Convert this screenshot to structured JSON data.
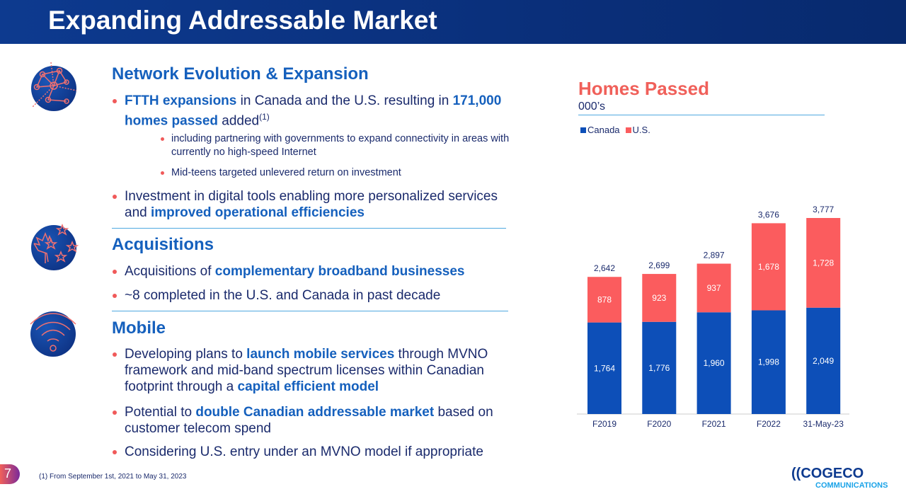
{
  "title": "Expanding Addressable Market",
  "sections": {
    "network": {
      "title": "Network Evolution & Expansion",
      "b1": {
        "h1": "FTTH expansions",
        "t1": " in Canada and the U.S. resulting in ",
        "h2": "171,000 homes passed",
        "t2": " added",
        "sup": "(1)"
      },
      "s1": "including partnering with governments to expand connectivity in areas with currently no high-speed Internet",
      "s2": "Mid-teens targeted unlevered return on investment",
      "b2": {
        "t1": "Investment in digital tools enabling more personalized services and ",
        "h1": "improved operational efficiencies"
      }
    },
    "acq": {
      "title": "Acquisitions",
      "b1": {
        "t1": "Acquisitions of ",
        "h1": "complementary broadband businesses"
      },
      "b2": "~8 completed in the U.S. and Canada in past decade"
    },
    "mobile": {
      "title": "Mobile",
      "b1": {
        "t1": "Developing plans to ",
        "h1": "launch mobile services",
        "t2": " through MVNO framework and mid-band spectrum licenses within Canadian footprint through a ",
        "h2": "capital efficient model"
      },
      "b2": {
        "t1": "Potential to ",
        "h1": "double Canadian addressable market",
        "t2": " based on customer telecom spend"
      },
      "b3": "Considering U.S. entry under an MVNO model if appropriate"
    }
  },
  "icons": [
    "network-icon",
    "maple-leaf-stars-icon",
    "wifi-icon"
  ],
  "footer": {
    "page": "7",
    "note": "(1) From September 1st, 2021 to May 31, 2023",
    "logo_main": "COGECO",
    "logo_sub": "COMMUNICATIONS"
  },
  "chart_data": {
    "type": "bar",
    "stacked": true,
    "title": "Homes Passed",
    "subtitle": "000’s",
    "categories": [
      "F2019",
      "F2020",
      "F2021",
      "F2022",
      "31-May-23"
    ],
    "series": [
      {
        "name": "Canada",
        "values": [
          1764,
          1776,
          1960,
          1998,
          2049
        ],
        "color": "#0d4fb8"
      },
      {
        "name": "U.S.",
        "values": [
          878,
          923,
          937,
          1678,
          1728
        ],
        "color": "#fb5c5e"
      }
    ],
    "totals": [
      "2,642",
      "2,699",
      "2,897",
      "3,676",
      "3,777"
    ],
    "labels": [
      [
        "1,764",
        "1,776",
        "1,960",
        "1,998",
        "2,049"
      ],
      [
        "878",
        "923",
        "937",
        "1,678",
        "1,728"
      ]
    ],
    "legend_position": "top-left",
    "grid": false
  }
}
